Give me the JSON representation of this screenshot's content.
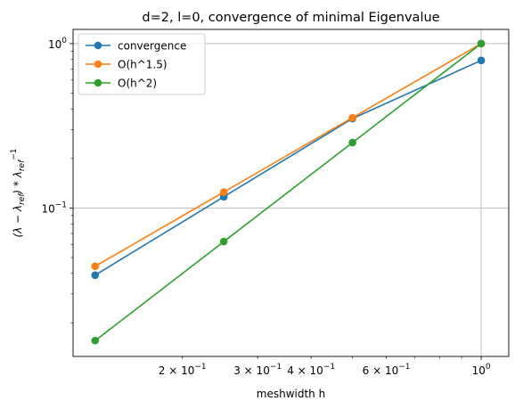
{
  "chart_data": {
    "type": "line",
    "title": "d=2, l=0, convergence of minimal Eigenvalue",
    "xlabel": "meshwidth h",
    "ylabel": "(λ − λ_ref) * λ_ref^-1",
    "xscale": "log",
    "yscale": "log",
    "xlim": [
      0.111,
      1.16
    ],
    "ylim": [
      0.0125,
      1.22
    ],
    "grid": true,
    "legend_position": "top-left",
    "x_ticks": [
      {
        "value": 0.2,
        "label": "2 × 10^-1"
      },
      {
        "value": 0.3,
        "label": "3 × 10^-1"
      },
      {
        "value": 0.4,
        "label": "4 × 10^-1"
      },
      {
        "value": 0.6,
        "label": "6 × 10^-1"
      },
      {
        "value": 1.0,
        "label": "10^0"
      }
    ],
    "y_ticks": [
      {
        "value": 0.1,
        "label": "10^-1"
      },
      {
        "value": 1.0,
        "label": "10^0"
      }
    ],
    "x": [
      0.125,
      0.25,
      0.5,
      1.0
    ],
    "series": [
      {
        "name": "convergence",
        "color": "#1f77b4",
        "values": [
          0.039,
          0.117,
          0.35,
          0.79
        ]
      },
      {
        "name": "O(h^1.5)",
        "color": "#ff7f0e",
        "values": [
          0.0442,
          0.125,
          0.354,
          1.0
        ]
      },
      {
        "name": "O(h^2)",
        "color": "#2ca02c",
        "values": [
          0.0156,
          0.0625,
          0.25,
          1.0
        ]
      }
    ]
  }
}
